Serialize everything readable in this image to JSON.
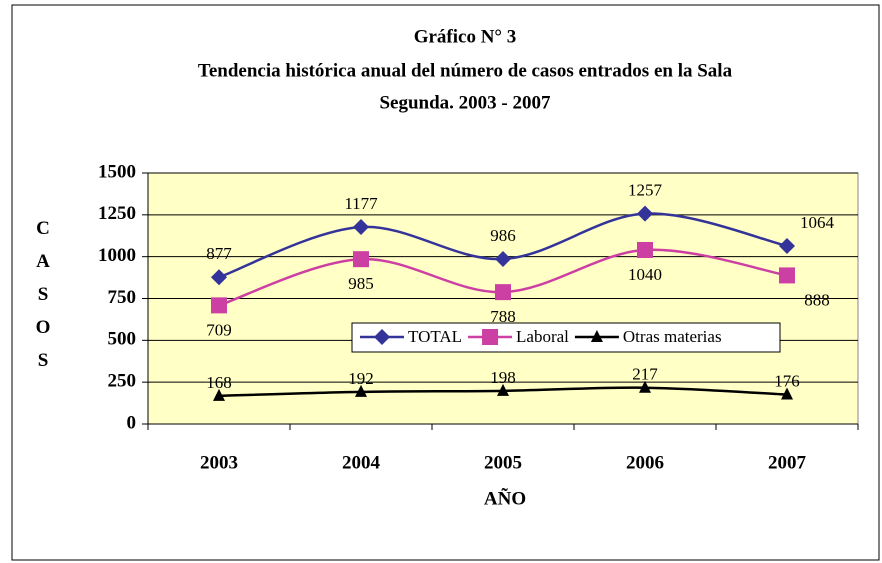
{
  "chart_data": {
    "type": "line",
    "title": "Gráfico N° 3",
    "subtitle": [
      "Tendencia histórica anual del número de casos entrados en la Sala",
      "Segunda. 2003 - 2007"
    ],
    "x_label": "AÑO",
    "y_label": "CASOS",
    "categories": [
      "2003",
      "2004",
      "2005",
      "2006",
      "2007"
    ],
    "series": [
      {
        "name": "TOTAL",
        "color": "#333399",
        "marker": "diamond",
        "values": [
          877,
          1177,
          986,
          1257,
          1064
        ]
      },
      {
        "name": "Laboral",
        "color": "#cc3fa3",
        "marker": "square",
        "values": [
          709,
          985,
          788,
          1040,
          888
        ]
      },
      {
        "name": "Otras materias",
        "color": "#000000",
        "marker": "triangle",
        "values": [
          168,
          192,
          198,
          217,
          176
        ]
      }
    ],
    "ylim": [
      0,
      1500
    ],
    "yticks": [
      0,
      250,
      500,
      750,
      1000,
      1250,
      1500
    ],
    "grid": true,
    "smooth": true,
    "legend": "center"
  }
}
